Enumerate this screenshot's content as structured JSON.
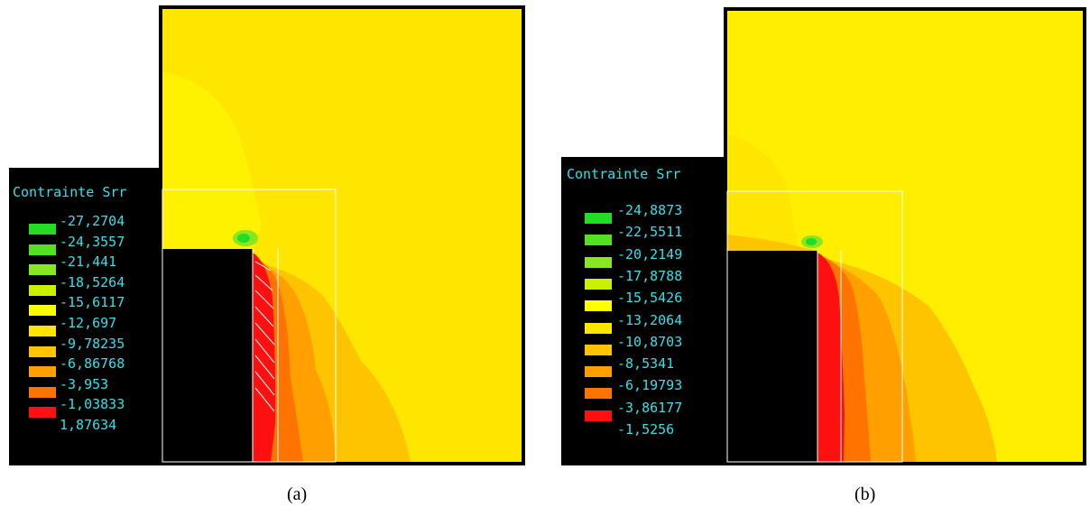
{
  "panels": [
    {
      "id": "a",
      "caption": "(a)",
      "legend_title": "Contrainte Srr",
      "legend_values": [
        "-27,2704",
        "-24,3557",
        "-21,441",
        "-18,5264",
        "-15,6117",
        "-12,697",
        "-9,78235",
        "-6,86768",
        "-3,953",
        "-1,03833",
        "1,87634"
      ],
      "swatch_colors": [
        "#22dd22",
        "#55e022",
        "#88e622",
        "#c8f000",
        "#ffff00",
        "#ffe600",
        "#ffc400",
        "#ffa000",
        "#ff7400",
        "#ff1010"
      ]
    },
    {
      "id": "b",
      "caption": "(b)",
      "legend_title": "Contrainte Srr",
      "legend_values": [
        "-24,8873",
        "-22,5511",
        "-20,2149",
        "-17,8788",
        "-15,5426",
        "-13,2064",
        "-10,8703",
        "-8,5341",
        "-6,19793",
        "-3,86177",
        "-1,5256"
      ],
      "swatch_colors": [
        "#22dd22",
        "#55e022",
        "#88e622",
        "#c8f000",
        "#ffff00",
        "#ffe600",
        "#ffc400",
        "#ffa000",
        "#ff7400",
        "#ff1010"
      ]
    }
  ],
  "colors": {
    "background_field": "#ffe600",
    "field_yellow_light": "#ffee00",
    "legend_text": "#33e0e8",
    "outline": "#000000",
    "guide_lines": "#ffffff"
  }
}
